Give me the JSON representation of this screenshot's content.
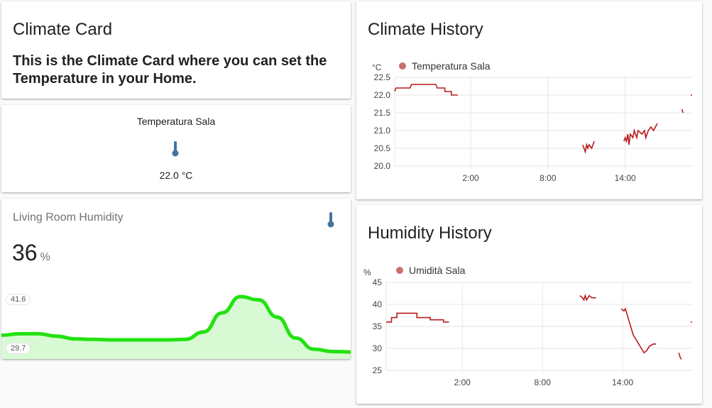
{
  "markdown_card": {
    "title": "Climate Card",
    "content": "This is the Climate Card where you can set the Temperature in your Home."
  },
  "thermostat_card": {
    "name": "Temperatura Sala",
    "icon": "thermometer-icon",
    "state": "22.0 °C"
  },
  "sensor_card": {
    "name": "Living Room Humidity",
    "icon": "thermometer-icon",
    "state": "36",
    "unit": "%",
    "graph_max": "41.6",
    "graph_min": "29.7",
    "graph_color": "#22e20f",
    "graph_values": [
      33.3,
      33.6,
      33.6,
      33.1,
      32.5,
      32.4,
      32.3,
      32.3,
      32.3,
      32.3,
      32.4,
      34.0,
      38.1,
      41.6,
      40.9,
      37.2,
      32.7,
      30.3,
      29.8,
      29.7
    ]
  },
  "climate_history": {
    "title": "Climate History",
    "unit": "°C",
    "legend": "Temperatura Sala",
    "color": "#b71c1c",
    "ylim": [
      20.0,
      22.5
    ],
    "yticks": [
      "22.5",
      "22.0",
      "21.5",
      "21.0",
      "20.5",
      "20.0"
    ],
    "xticks": [
      "2:00",
      "8:00",
      "14:00"
    ],
    "xtick_hours": [
      2,
      8,
      14
    ],
    "xlim_hours": [
      -3.9,
      19.2
    ],
    "segments": [
      [
        [
          -3.9,
          22.1
        ],
        [
          -3.8,
          22.2
        ],
        [
          -2.7,
          22.2
        ],
        [
          -2.6,
          22.3
        ],
        [
          -0.7,
          22.3
        ],
        [
          -0.6,
          22.2
        ],
        [
          0.0,
          22.2
        ],
        [
          0.0,
          22.1
        ],
        [
          0.5,
          22.1
        ],
        [
          0.5,
          22.0
        ],
        [
          1.0,
          22.0
        ]
      ],
      [
        [
          10.7,
          20.6
        ],
        [
          10.8,
          20.5
        ],
        [
          10.9,
          20.4
        ],
        [
          11.0,
          20.6
        ],
        [
          11.1,
          20.5
        ],
        [
          11.2,
          20.6
        ],
        [
          11.4,
          20.5
        ],
        [
          11.5,
          20.6
        ],
        [
          11.6,
          20.7
        ]
      ],
      [
        [
          13.9,
          20.7
        ],
        [
          14.0,
          20.8
        ],
        [
          14.1,
          20.7
        ],
        [
          14.2,
          20.9
        ],
        [
          14.3,
          20.6
        ],
        [
          14.4,
          20.9
        ],
        [
          14.6,
          20.8
        ],
        [
          14.7,
          21.0
        ],
        [
          14.9,
          20.8
        ],
        [
          15.0,
          21.0
        ],
        [
          15.3,
          20.9
        ],
        [
          15.5,
          21.0
        ],
        [
          15.6,
          20.8
        ],
        [
          15.8,
          21.0
        ],
        [
          16.0,
          21.1
        ],
        [
          16.2,
          21.0
        ],
        [
          16.5,
          21.2
        ]
      ],
      [
        [
          18.4,
          21.6
        ],
        [
          18.5,
          21.5
        ]
      ],
      [
        [
          19.1,
          22.0
        ],
        [
          19.2,
          22.0
        ]
      ]
    ]
  },
  "humidity_history": {
    "title": "Humidity History",
    "unit": "%",
    "legend": "Umidità Sala",
    "color": "#b71c1c",
    "ylim": [
      25,
      45
    ],
    "yticks": [
      "45",
      "40",
      "35",
      "30",
      "25"
    ],
    "xticks": [
      "2:00",
      "8:00",
      "14:00"
    ],
    "xtick_hours": [
      2,
      8,
      14
    ],
    "xlim_hours": [
      -3.7,
      19.2
    ],
    "segments": [
      [
        [
          -3.7,
          36.0
        ],
        [
          -3.3,
          36.0
        ],
        [
          -3.3,
          37.0
        ],
        [
          -2.9,
          37.0
        ],
        [
          -2.9,
          38.0
        ],
        [
          -1.4,
          38.0
        ],
        [
          -1.4,
          37.0
        ],
        [
          -0.4,
          37.0
        ],
        [
          -0.4,
          36.5
        ],
        [
          0.6,
          36.5
        ],
        [
          0.6,
          36.0
        ],
        [
          1.0,
          36.0
        ]
      ],
      [
        [
          10.8,
          42.0
        ],
        [
          11.0,
          41.5
        ],
        [
          11.1,
          41.0
        ],
        [
          11.2,
          42.0
        ],
        [
          11.3,
          41.0
        ],
        [
          11.5,
          42.0
        ],
        [
          11.7,
          41.5
        ],
        [
          12.0,
          41.5
        ]
      ],
      [
        [
          13.9,
          39.0
        ],
        [
          14.1,
          38.5
        ],
        [
          14.2,
          39.0
        ],
        [
          14.4,
          37.0
        ],
        [
          14.6,
          35.0
        ],
        [
          14.8,
          33.0
        ],
        [
          15.0,
          32.0
        ],
        [
          15.4,
          30.0
        ],
        [
          15.6,
          29.0
        ],
        [
          15.8,
          29.5
        ],
        [
          16.0,
          30.5
        ],
        [
          16.3,
          31.0
        ],
        [
          16.5,
          31.0
        ]
      ],
      [
        [
          18.2,
          29.0
        ],
        [
          18.3,
          28.0
        ],
        [
          18.4,
          27.5
        ]
      ],
      [
        [
          19.1,
          36.0
        ],
        [
          19.2,
          36.0
        ]
      ]
    ]
  }
}
